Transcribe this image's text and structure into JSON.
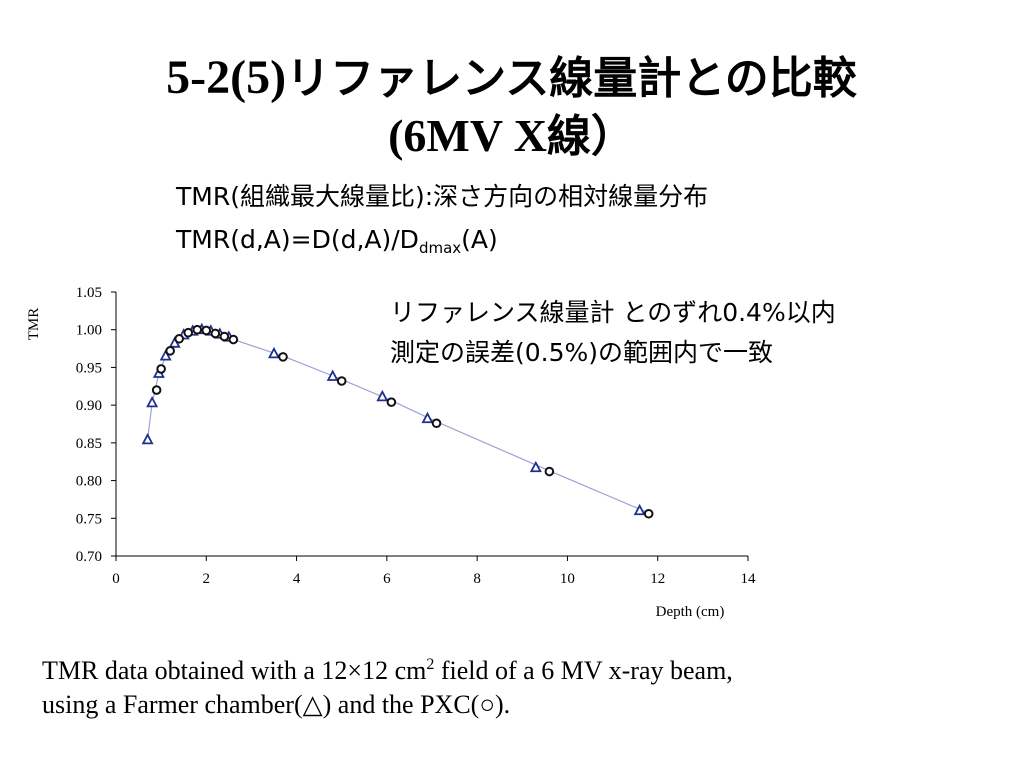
{
  "slide": {
    "title_num": "5-2(5)",
    "title_text": "リファレンス線量計との比較",
    "title_line2_mv": "(6MV X",
    "title_line2_rest": "線）",
    "subtitle1": "TMR(組織最大線量比):深さ方向の相対線量分布",
    "subtitle2_main": "TMR(d,A)=D(d,A)/D",
    "subtitle2_sub": "dmax",
    "subtitle2_end": "(A)",
    "note_line1": "リファレンス線量計 とのずれ0.4%以内",
    "note_line2": "測定の誤差(0.5%)の範囲内で一致",
    "caption_line1_a": "TMR data obtained with a 12×12 cm",
    "caption_line1_sup": "2",
    "caption_line1_b": " field of a 6 MV x-ray beam,",
    "caption_line2": "using a Farmer chamber(△)  and the PXC(○)."
  },
  "chart_data": {
    "type": "scatter",
    "title": "",
    "xlabel": "Depth (cm)",
    "ylabel": "TMR",
    "xlim": [
      0,
      14
    ],
    "ylim": [
      0.7,
      1.05
    ],
    "xticks": [
      0,
      2,
      4,
      6,
      8,
      10,
      12,
      14
    ],
    "yticks": [
      0.7,
      0.75,
      0.8,
      0.85,
      0.9,
      0.95,
      1.0,
      1.05
    ],
    "xtick_labels": [
      "0",
      "2",
      "4",
      "6",
      "8",
      "10",
      "12",
      "14"
    ],
    "ytick_labels": [
      "0.70",
      "0.75",
      "0.80",
      "0.85",
      "0.90",
      "0.95",
      "1.00",
      "1.05"
    ],
    "grid": false,
    "colors": {
      "triangle": "#1f2f8f",
      "circle": "#111111",
      "line": "#9aa3d6"
    },
    "series": [
      {
        "marker": "triangle",
        "x": [
          0.7,
          0.8,
          0.95,
          1.1,
          1.3,
          1.5,
          1.7,
          1.9,
          2.1,
          2.3,
          2.5,
          3.5,
          4.8,
          5.9,
          6.9,
          9.3,
          11.6
        ],
        "y": [
          0.854,
          0.903,
          0.942,
          0.965,
          0.982,
          0.993,
          0.998,
          1.0,
          0.998,
          0.994,
          0.99,
          0.968,
          0.938,
          0.911,
          0.882,
          0.817,
          0.76
        ]
      },
      {
        "marker": "circle",
        "x": [
          0.9,
          1.0,
          1.2,
          1.4,
          1.6,
          1.8,
          2.0,
          2.2,
          2.4,
          2.6,
          3.7,
          5.0,
          6.1,
          7.1,
          9.6,
          11.8
        ],
        "y": [
          0.92,
          0.948,
          0.972,
          0.988,
          0.996,
          1.0,
          0.999,
          0.995,
          0.991,
          0.987,
          0.964,
          0.932,
          0.904,
          0.876,
          0.812,
          0.756
        ]
      }
    ],
    "fit_line": {
      "x": [
        0.7,
        0.8,
        0.95,
        1.1,
        1.3,
        1.5,
        1.8,
        2.0,
        2.4,
        2.6,
        3.7,
        5.0,
        6.1,
        7.1,
        9.6,
        11.8
      ],
      "y": [
        0.854,
        0.903,
        0.942,
        0.965,
        0.982,
        0.993,
        1.0,
        0.999,
        0.991,
        0.987,
        0.965,
        0.934,
        0.906,
        0.878,
        0.813,
        0.757
      ]
    }
  }
}
